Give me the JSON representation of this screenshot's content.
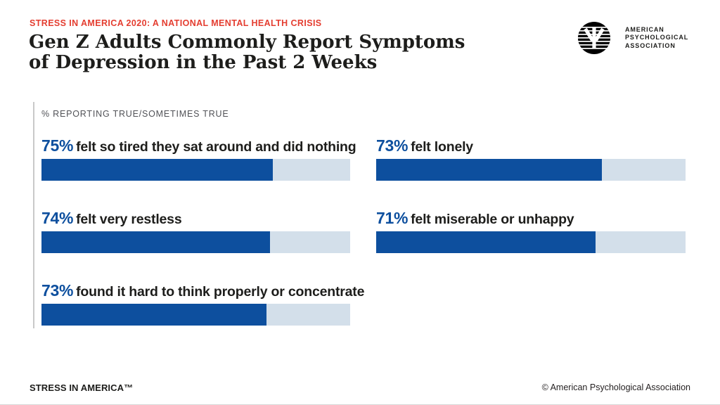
{
  "header": {
    "eyebrow": "STRESS IN AMERICA 2020: A NATIONAL MENTAL HEALTH CRISIS",
    "title_line1": "Gen Z Adults Commonly Report Symptoms",
    "title_line2": "of Depression in the Past 2 Weeks"
  },
  "logo": {
    "line1": "AMERICAN",
    "line2": "PSYCHOLOGICAL",
    "line3": "ASSOCIATION"
  },
  "chart_data": {
    "type": "bar",
    "orientation": "horizontal",
    "title": "Gen Z Adults Commonly Report Symptoms of Depression in the Past 2 Weeks",
    "axis_note": "% REPORTING TRUE/SOMETIMES TRUE",
    "unit": "%",
    "xlim": [
      0,
      100
    ],
    "bar_color": "#0d4f9e",
    "track_color": "#d3dfea",
    "layout": "two-column, left column rows 1-3, right column rows 1-2",
    "items": [
      {
        "pct_label": "75%",
        "value": 75,
        "label": "felt so tired they sat around and did nothing"
      },
      {
        "pct_label": "73%",
        "value": 73,
        "label": "felt lonely"
      },
      {
        "pct_label": "74%",
        "value": 74,
        "label": "felt very restless"
      },
      {
        "pct_label": "71%",
        "value": 71,
        "label": "felt miserable or unhappy"
      },
      {
        "pct_label": "73%",
        "value": 73,
        "label": "found it hard to think properly or concentrate"
      }
    ]
  },
  "footer": {
    "brand": "STRESS IN AMERICA™",
    "copyright": "© American Psychological Association"
  }
}
